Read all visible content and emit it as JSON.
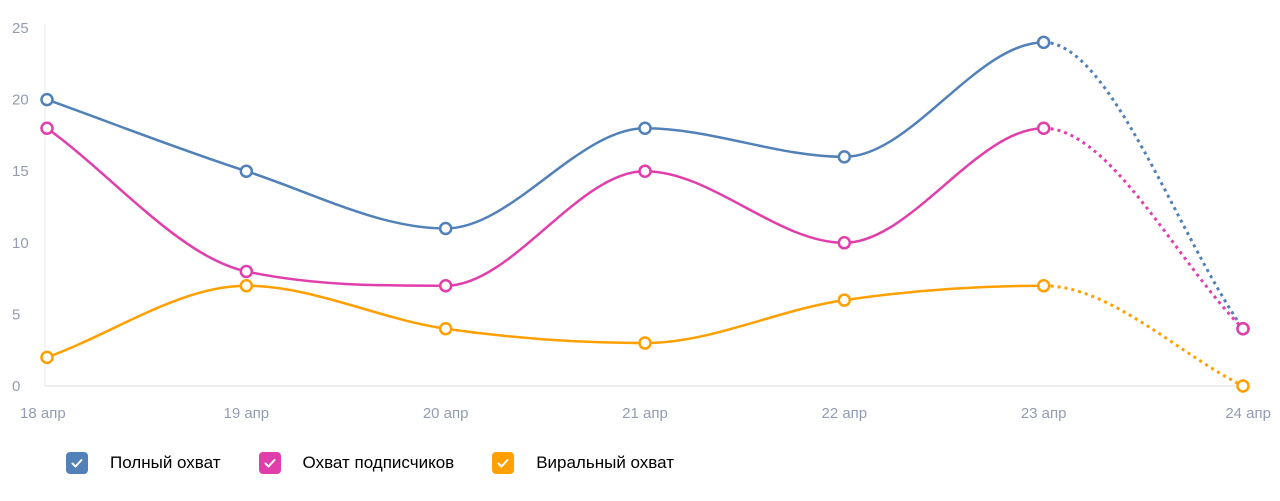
{
  "chart_data": {
    "type": "line",
    "categories": [
      "18 апр",
      "19 апр",
      "20 апр",
      "21 апр",
      "22 апр",
      "23 апр",
      "24 апр"
    ],
    "ylim": [
      0,
      25
    ],
    "yticks": [
      0,
      5,
      10,
      15,
      20,
      25
    ],
    "grid": false,
    "legend_placement": "bottom-left",
    "last_segment_style": "dotted",
    "series": [
      {
        "name": "Полный охват",
        "color": "#5181b8",
        "values": [
          20,
          15,
          11,
          18,
          16,
          24,
          4
        ]
      },
      {
        "name": "Охват подписчиков",
        "color": "#e03fab",
        "values": [
          18,
          8,
          7,
          15,
          10,
          18,
          4
        ]
      },
      {
        "name": "Виральный охват",
        "color": "#ffa000",
        "values": [
          2,
          7,
          4,
          3,
          6,
          7,
          0
        ]
      }
    ]
  },
  "legend_icon": "checkbox-checked-icon"
}
